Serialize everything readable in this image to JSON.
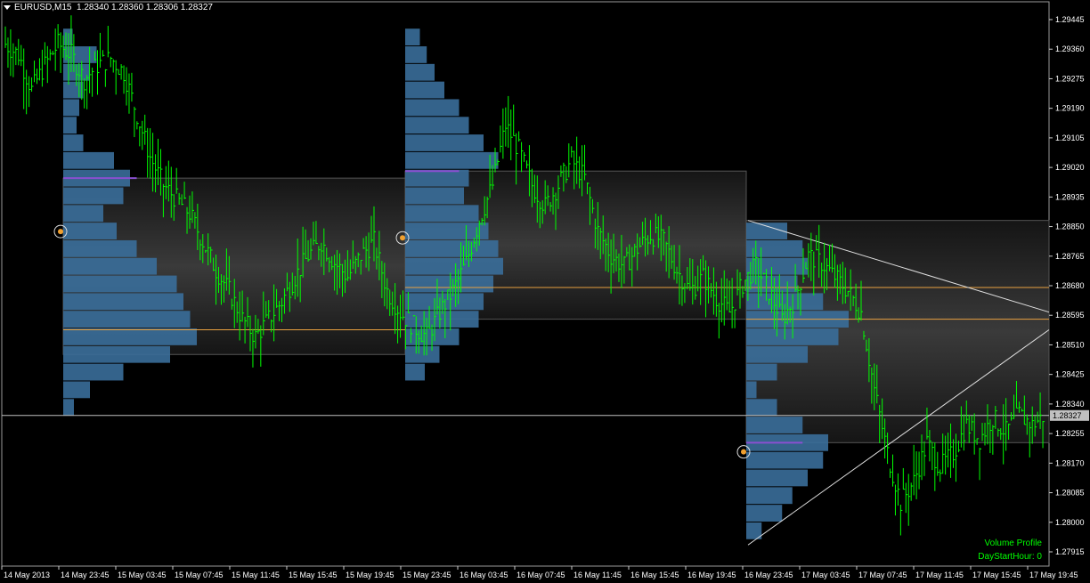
{
  "header": {
    "symbol": "EURUSD,M15",
    "ohlc": "1.28340 1.28360 1.28306 1.28327"
  },
  "indicator": {
    "name": "Volume Profile",
    "param": "DayStartHour: 0"
  },
  "colors": {
    "background": "#000000",
    "candle": "#00ff00",
    "profile_bar": "#3a6e9a",
    "poc": "#8a4fd0",
    "value_area_band": "#2a2a2a",
    "level_line": "#e8a040",
    "grid_price_line": "#c0c0c0",
    "trend_line": "#e0e0e0"
  },
  "chart_data": {
    "type": "candlestick",
    "current_price": "1.28327",
    "ylim": [
      1.279,
      1.295
    ],
    "y_ticks": [
      "1.29445",
      "1.29360",
      "1.29275",
      "1.29190",
      "1.29105",
      "1.29020",
      "1.28935",
      "1.28850",
      "1.28765",
      "1.28680",
      "1.28595",
      "1.28510",
      "1.28425",
      "1.28340",
      "1.28255",
      "1.28170",
      "1.28085",
      "1.28000",
      "1.27915"
    ],
    "x_ticks": [
      "14 May 2013",
      "14 May 23:45",
      "15 May 03:45",
      "15 May 07:45",
      "15 May 11:45",
      "15 May 15:45",
      "15 May 19:45",
      "15 May 23:45",
      "16 May 03:45",
      "16 May 07:45",
      "16 May 11:45",
      "16 May 15:45",
      "16 May 19:45",
      "16 May 23:45",
      "17 May 03:45",
      "17 May 07:45",
      "17 May 11:45",
      "17 May 15:45",
      "17 May 19:45"
    ],
    "close_path": [
      [
        0,
        1.2938
      ],
      [
        5,
        1.2935
      ],
      [
        10,
        1.2925
      ],
      [
        15,
        1.2932
      ],
      [
        20,
        1.2938
      ],
      [
        25,
        1.2935
      ],
      [
        30,
        1.2928
      ],
      [
        35,
        1.2932
      ],
      [
        40,
        1.2934
      ],
      [
        45,
        1.293
      ],
      [
        50,
        1.2918
      ],
      [
        55,
        1.2906
      ],
      [
        60,
        1.2898
      ],
      [
        65,
        1.2894
      ],
      [
        70,
        1.289
      ],
      [
        75,
        1.2882
      ],
      [
        80,
        1.2874
      ],
      [
        85,
        1.2868
      ],
      [
        90,
        1.286
      ],
      [
        95,
        1.2855
      ],
      [
        100,
        1.286
      ],
      [
        105,
        1.2865
      ],
      [
        110,
        1.2872
      ],
      [
        115,
        1.2878
      ],
      [
        120,
        1.2882
      ],
      [
        125,
        1.2876
      ],
      [
        130,
        1.2872
      ],
      [
        135,
        1.2878
      ],
      [
        140,
        1.2882
      ],
      [
        145,
        1.2868
      ],
      [
        150,
        1.2862
      ],
      [
        155,
        1.2858
      ],
      [
        160,
        1.2855
      ],
      [
        165,
        1.2862
      ],
      [
        170,
        1.2868
      ],
      [
        175,
        1.2876
      ],
      [
        180,
        1.2888
      ],
      [
        185,
        1.2898
      ],
      [
        190,
        1.2915
      ],
      [
        195,
        1.2908
      ],
      [
        200,
        1.2898
      ],
      [
        205,
        1.2892
      ],
      [
        210,
        1.2898
      ],
      [
        215,
        1.2905
      ],
      [
        220,
        1.29
      ],
      [
        225,
        1.2885
      ],
      [
        230,
        1.2878
      ],
      [
        235,
        1.2875
      ],
      [
        240,
        1.288
      ],
      [
        245,
        1.2884
      ],
      [
        250,
        1.2882
      ],
      [
        255,
        1.2874
      ],
      [
        260,
        1.2868
      ],
      [
        265,
        1.2872
      ],
      [
        270,
        1.2866
      ],
      [
        275,
        1.2862
      ],
      [
        280,
        1.287
      ],
      [
        285,
        1.2875
      ],
      [
        290,
        1.2868
      ],
      [
        295,
        1.286
      ],
      [
        300,
        1.2866
      ],
      [
        305,
        1.2878
      ],
      [
        310,
        1.2876
      ],
      [
        315,
        1.2872
      ],
      [
        320,
        1.2868
      ],
      [
        325,
        1.2862
      ],
      [
        330,
        1.284
      ],
      [
        335,
        1.2822
      ],
      [
        340,
        1.2808
      ],
      [
        345,
        1.2814
      ],
      [
        350,
        1.2825
      ],
      [
        355,
        1.2818
      ],
      [
        360,
        1.2822
      ],
      [
        365,
        1.283
      ],
      [
        370,
        1.2826
      ],
      [
        375,
        1.2832
      ],
      [
        380,
        1.2828
      ],
      [
        385,
        1.2833
      ],
      [
        390,
        1.283
      ],
      [
        395,
        1.2833
      ]
    ],
    "volume_profiles": [
      {
        "session": "14 May",
        "poc": 1.29,
        "value_area_high": 1.29,
        "value_area_low": 1.285,
        "levels": [
          [
            1.294,
            0.07
          ],
          [
            1.2935,
            0.25
          ],
          [
            1.293,
            0.2
          ],
          [
            1.2925,
            0.15
          ],
          [
            1.292,
            0.12
          ],
          [
            1.2915,
            0.1
          ],
          [
            1.291,
            0.15
          ],
          [
            1.2905,
            0.38
          ],
          [
            1.29,
            0.5
          ],
          [
            1.2895,
            0.45
          ],
          [
            1.289,
            0.3
          ],
          [
            1.2885,
            0.4
          ],
          [
            1.288,
            0.55
          ],
          [
            1.2875,
            0.7
          ],
          [
            1.287,
            0.85
          ],
          [
            1.2865,
            0.9
          ],
          [
            1.286,
            0.95
          ],
          [
            1.2855,
            1.0
          ],
          [
            1.285,
            0.8
          ],
          [
            1.2845,
            0.45
          ],
          [
            1.284,
            0.2
          ],
          [
            1.2835,
            0.08
          ]
        ],
        "levels_line": 1.2857
      },
      {
        "session": "15 May",
        "poc": 1.2902,
        "value_area_high": 1.2902,
        "value_area_low": 1.286,
        "levels": [
          [
            1.294,
            0.15
          ],
          [
            1.2935,
            0.22
          ],
          [
            1.293,
            0.3
          ],
          [
            1.2925,
            0.4
          ],
          [
            1.292,
            0.55
          ],
          [
            1.2915,
            0.65
          ],
          [
            1.291,
            0.8
          ],
          [
            1.2905,
            0.95
          ],
          [
            1.29,
            0.65
          ],
          [
            1.2895,
            0.6
          ],
          [
            1.289,
            0.75
          ],
          [
            1.2885,
            0.85
          ],
          [
            1.288,
            0.95
          ],
          [
            1.2875,
            1.0
          ],
          [
            1.287,
            0.9
          ],
          [
            1.2865,
            0.8
          ],
          [
            1.286,
            0.75
          ],
          [
            1.2855,
            0.55
          ],
          [
            1.285,
            0.35
          ],
          [
            1.2845,
            0.2
          ]
        ],
        "levels_line": 1.2869
      },
      {
        "session": "16 May",
        "poc": 1.2825,
        "value_area_high": 1.2888,
        "value_area_low": 1.2825,
        "levels": [
          [
            1.2885,
            0.4
          ],
          [
            1.288,
            0.55
          ],
          [
            1.2875,
            0.6
          ],
          [
            1.287,
            0.5
          ],
          [
            1.2865,
            0.75
          ],
          [
            1.286,
            1.0
          ],
          [
            1.2855,
            0.9
          ],
          [
            1.285,
            0.6
          ],
          [
            1.2845,
            0.3
          ],
          [
            1.284,
            0.1
          ],
          [
            1.2835,
            0.3
          ],
          [
            1.283,
            0.55
          ],
          [
            1.2825,
            0.8
          ],
          [
            1.282,
            0.75
          ],
          [
            1.2815,
            0.6
          ],
          [
            1.281,
            0.45
          ],
          [
            1.2805,
            0.35
          ],
          [
            1.28,
            0.15
          ]
        ],
        "levels_line_a": 1.286,
        "levels_line_b": 1.2869
      }
    ]
  }
}
